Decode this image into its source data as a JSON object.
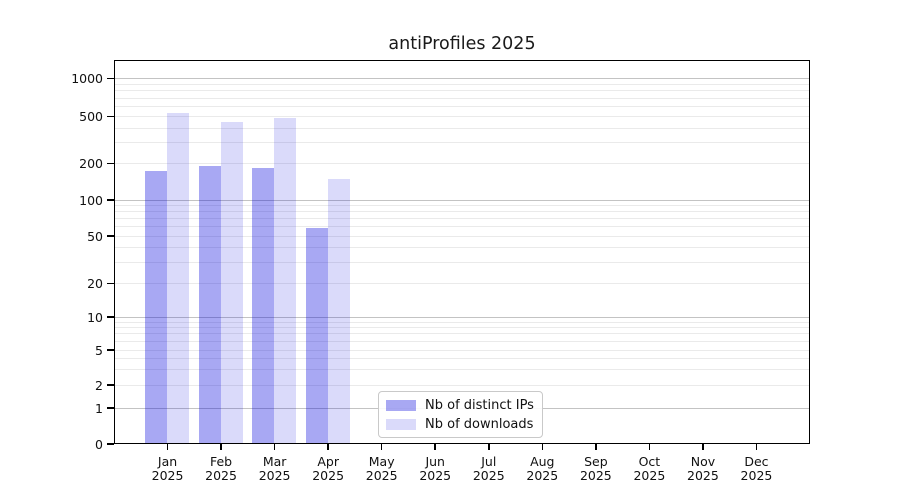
{
  "chart_data": {
    "type": "bar",
    "title": "antiProfiles 2025",
    "categories": [
      "Jan 2025",
      "Feb 2025",
      "Mar 2025",
      "Apr 2025",
      "May 2025",
      "Jun 2025",
      "Jul 2025",
      "Aug 2025",
      "Sep 2025",
      "Oct 2025",
      "Nov 2025",
      "Dec 2025"
    ],
    "months": [
      {
        "month": "Jan",
        "year": "2025"
      },
      {
        "month": "Feb",
        "year": "2025"
      },
      {
        "month": "Mar",
        "year": "2025"
      },
      {
        "month": "Apr",
        "year": "2025"
      },
      {
        "month": "May",
        "year": "2025"
      },
      {
        "month": "Jun",
        "year": "2025"
      },
      {
        "month": "Jul",
        "year": "2025"
      },
      {
        "month": "Aug",
        "year": "2025"
      },
      {
        "month": "Sep",
        "year": "2025"
      },
      {
        "month": "Oct",
        "year": "2025"
      },
      {
        "month": "Nov",
        "year": "2025"
      },
      {
        "month": "Dec",
        "year": "2025"
      }
    ],
    "series": [
      {
        "name": "Nb of distinct IPs",
        "color": "#0000dd",
        "opacity": 0.34,
        "blended_color": "#a8a8f3",
        "values": [
          172,
          188,
          182,
          58,
          null,
          null,
          null,
          null,
          null,
          null,
          null,
          null
        ]
      },
      {
        "name": "Nb of downloads",
        "color": "#0000dd",
        "opacity": 0.145,
        "blended_color": "#dadafa",
        "values": [
          525,
          450,
          480,
          147,
          null,
          null,
          null,
          null,
          null,
          null,
          null,
          null
        ]
      }
    ],
    "yaxis": {
      "scale": "symlog",
      "tick_values": [
        0,
        1,
        2,
        5,
        10,
        20,
        50,
        100,
        200,
        500,
        1000
      ],
      "tick_labels": [
        "0",
        "1",
        "2",
        "5",
        "10",
        "20",
        "50",
        "100",
        "200",
        "500",
        "1000"
      ],
      "major_gridlines": [
        1,
        10,
        100,
        1000
      ],
      "ylim_top": 1400
    },
    "xaxis": {
      "label_year_on_second_line": true
    },
    "legend_position": "lower-center-left",
    "grid": true
  }
}
